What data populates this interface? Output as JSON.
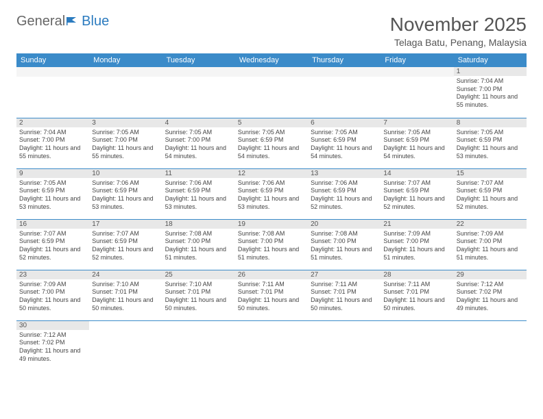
{
  "logo": {
    "general": "General",
    "blue": "Blue"
  },
  "title": "November 2025",
  "location": "Telaga Batu, Penang, Malaysia",
  "colors": {
    "header_bg": "#3b8bc9",
    "header_fg": "#ffffff",
    "daybar_bg": "#e8e8e8",
    "border": "#3b8bc9",
    "text": "#444444",
    "title_color": "#555555"
  },
  "weekdays": [
    "Sunday",
    "Monday",
    "Tuesday",
    "Wednesday",
    "Thursday",
    "Friday",
    "Saturday"
  ],
  "labels": {
    "sunrise": "Sunrise:",
    "sunset": "Sunset:",
    "daylight_prefix": "Daylight:"
  },
  "weeks": [
    [
      null,
      null,
      null,
      null,
      null,
      null,
      {
        "n": "1",
        "sr": "7:04 AM",
        "ss": "7:00 PM",
        "dl": "11 hours and 55 minutes."
      }
    ],
    [
      {
        "n": "2",
        "sr": "7:04 AM",
        "ss": "7:00 PM",
        "dl": "11 hours and 55 minutes."
      },
      {
        "n": "3",
        "sr": "7:05 AM",
        "ss": "7:00 PM",
        "dl": "11 hours and 55 minutes."
      },
      {
        "n": "4",
        "sr": "7:05 AM",
        "ss": "7:00 PM",
        "dl": "11 hours and 54 minutes."
      },
      {
        "n": "5",
        "sr": "7:05 AM",
        "ss": "6:59 PM",
        "dl": "11 hours and 54 minutes."
      },
      {
        "n": "6",
        "sr": "7:05 AM",
        "ss": "6:59 PM",
        "dl": "11 hours and 54 minutes."
      },
      {
        "n": "7",
        "sr": "7:05 AM",
        "ss": "6:59 PM",
        "dl": "11 hours and 54 minutes."
      },
      {
        "n": "8",
        "sr": "7:05 AM",
        "ss": "6:59 PM",
        "dl": "11 hours and 53 minutes."
      }
    ],
    [
      {
        "n": "9",
        "sr": "7:05 AM",
        "ss": "6:59 PM",
        "dl": "11 hours and 53 minutes."
      },
      {
        "n": "10",
        "sr": "7:06 AM",
        "ss": "6:59 PM",
        "dl": "11 hours and 53 minutes."
      },
      {
        "n": "11",
        "sr": "7:06 AM",
        "ss": "6:59 PM",
        "dl": "11 hours and 53 minutes."
      },
      {
        "n": "12",
        "sr": "7:06 AM",
        "ss": "6:59 PM",
        "dl": "11 hours and 53 minutes."
      },
      {
        "n": "13",
        "sr": "7:06 AM",
        "ss": "6:59 PM",
        "dl": "11 hours and 52 minutes."
      },
      {
        "n": "14",
        "sr": "7:07 AM",
        "ss": "6:59 PM",
        "dl": "11 hours and 52 minutes."
      },
      {
        "n": "15",
        "sr": "7:07 AM",
        "ss": "6:59 PM",
        "dl": "11 hours and 52 minutes."
      }
    ],
    [
      {
        "n": "16",
        "sr": "7:07 AM",
        "ss": "6:59 PM",
        "dl": "11 hours and 52 minutes."
      },
      {
        "n": "17",
        "sr": "7:07 AM",
        "ss": "6:59 PM",
        "dl": "11 hours and 52 minutes."
      },
      {
        "n": "18",
        "sr": "7:08 AM",
        "ss": "7:00 PM",
        "dl": "11 hours and 51 minutes."
      },
      {
        "n": "19",
        "sr": "7:08 AM",
        "ss": "7:00 PM",
        "dl": "11 hours and 51 minutes."
      },
      {
        "n": "20",
        "sr": "7:08 AM",
        "ss": "7:00 PM",
        "dl": "11 hours and 51 minutes."
      },
      {
        "n": "21",
        "sr": "7:09 AM",
        "ss": "7:00 PM",
        "dl": "11 hours and 51 minutes."
      },
      {
        "n": "22",
        "sr": "7:09 AM",
        "ss": "7:00 PM",
        "dl": "11 hours and 51 minutes."
      }
    ],
    [
      {
        "n": "23",
        "sr": "7:09 AM",
        "ss": "7:00 PM",
        "dl": "11 hours and 50 minutes."
      },
      {
        "n": "24",
        "sr": "7:10 AM",
        "ss": "7:01 PM",
        "dl": "11 hours and 50 minutes."
      },
      {
        "n": "25",
        "sr": "7:10 AM",
        "ss": "7:01 PM",
        "dl": "11 hours and 50 minutes."
      },
      {
        "n": "26",
        "sr": "7:11 AM",
        "ss": "7:01 PM",
        "dl": "11 hours and 50 minutes."
      },
      {
        "n": "27",
        "sr": "7:11 AM",
        "ss": "7:01 PM",
        "dl": "11 hours and 50 minutes."
      },
      {
        "n": "28",
        "sr": "7:11 AM",
        "ss": "7:01 PM",
        "dl": "11 hours and 50 minutes."
      },
      {
        "n": "29",
        "sr": "7:12 AM",
        "ss": "7:02 PM",
        "dl": "11 hours and 49 minutes."
      }
    ],
    [
      {
        "n": "30",
        "sr": "7:12 AM",
        "ss": "7:02 PM",
        "dl": "11 hours and 49 minutes."
      },
      null,
      null,
      null,
      null,
      null,
      null
    ]
  ]
}
